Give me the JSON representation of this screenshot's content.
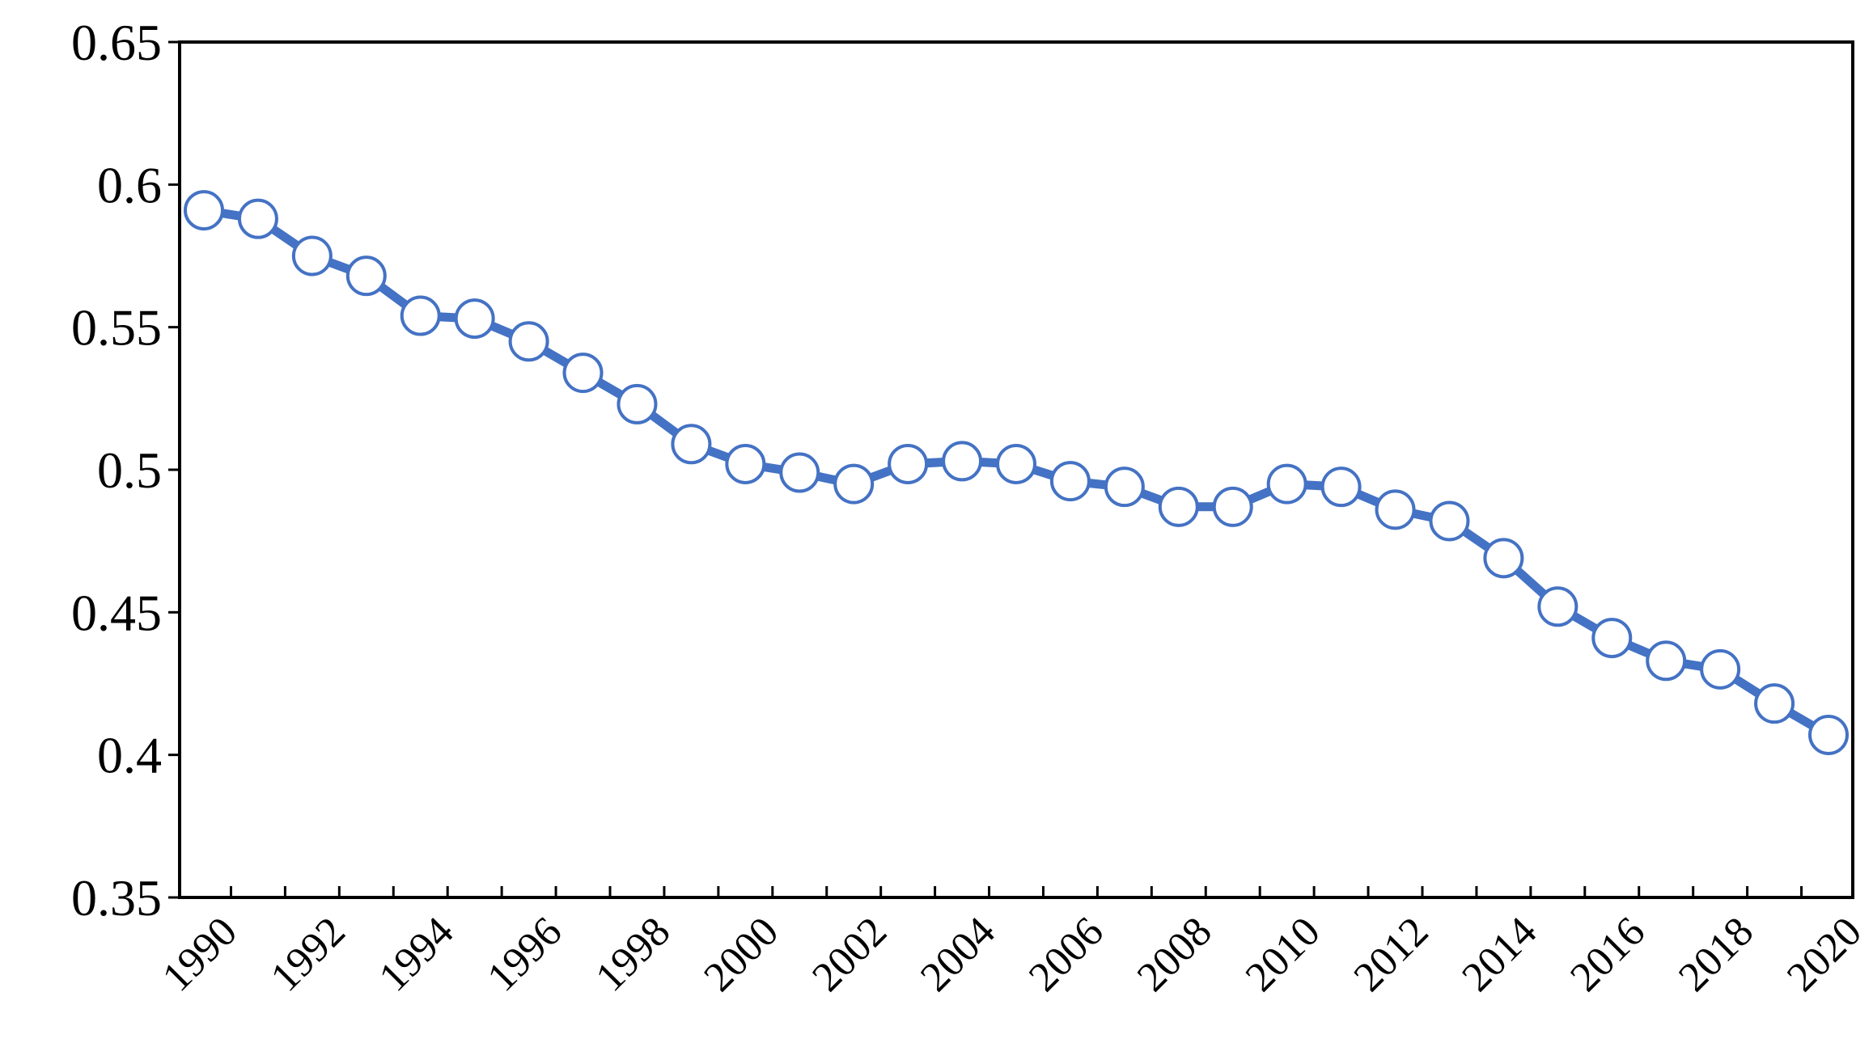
{
  "chart_data": {
    "type": "line",
    "title": "",
    "xlabel": "",
    "ylabel": "",
    "ylim": [
      0.35,
      0.65
    ],
    "yticks": [
      "0.35",
      "0.4",
      "0.45",
      "0.5",
      "0.55",
      "0.6",
      "0.65"
    ],
    "x": [
      1990,
      1991,
      1992,
      1993,
      1994,
      1995,
      1996,
      1997,
      1998,
      1999,
      2000,
      2001,
      2002,
      2003,
      2004,
      2005,
      2006,
      2007,
      2008,
      2009,
      2010,
      2011,
      2012,
      2013,
      2014,
      2015,
      2016,
      2017,
      2018,
      2019,
      2020
    ],
    "xtick_labels": [
      "1990",
      "1992",
      "1994",
      "1996",
      "1998",
      "2000",
      "2002",
      "2004",
      "2006",
      "2008",
      "2010",
      "2012",
      "2014",
      "2016",
      "2018",
      "2020"
    ],
    "grid": false,
    "series": [
      {
        "values": [
          0.591,
          0.588,
          0.575,
          0.568,
          0.554,
          0.553,
          0.545,
          0.534,
          0.523,
          0.509,
          0.502,
          0.499,
          0.495,
          0.502,
          0.503,
          0.502,
          0.496,
          0.494,
          0.487,
          0.487,
          0.495,
          0.494,
          0.486,
          0.482,
          0.469,
          0.452,
          0.441,
          0.433,
          0.43,
          0.418,
          0.407
        ],
        "color": "#4472C4",
        "marker_fill": "#ffffff"
      }
    ]
  }
}
